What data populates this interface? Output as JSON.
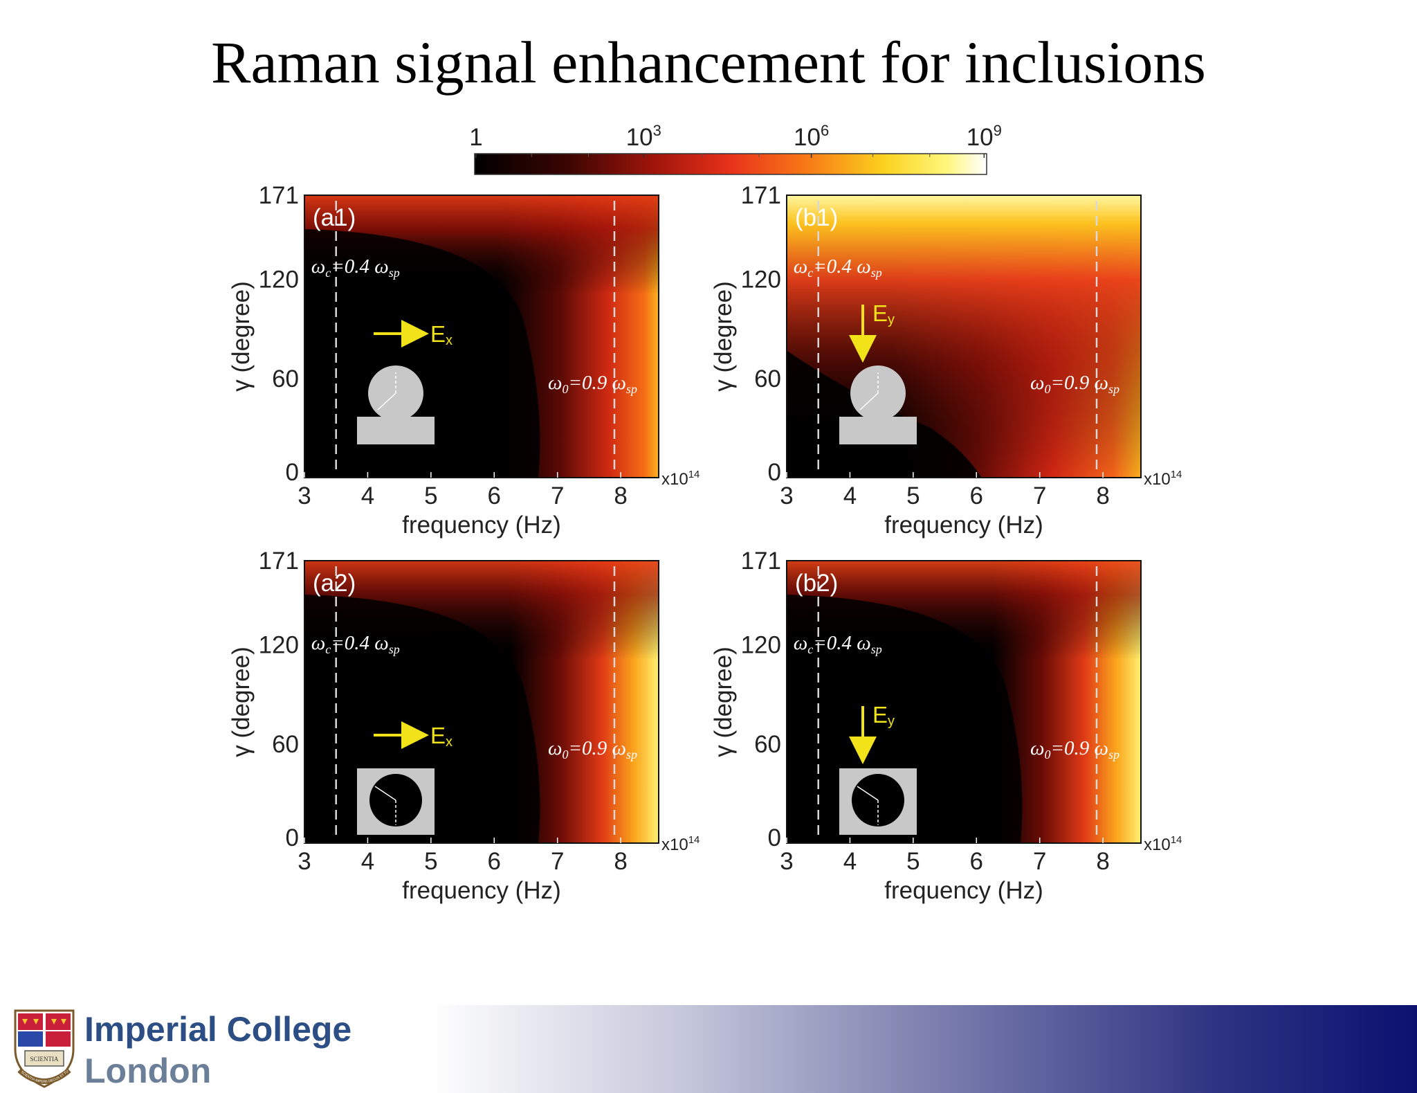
{
  "slide": {
    "title": "Raman signal enhancement for inclusions",
    "logo_line1": "Imperial College",
    "logo_line2": "London",
    "crest_motto": "SCIENTIA IMPERII DECUS ET TUTAMEN",
    "crest_book": "SCIENTIA"
  },
  "colorbar": {
    "colormap": "hot",
    "scale": "log",
    "range": [
      1,
      1000000000
    ],
    "ticks": [
      {
        "base": "1",
        "exp": ""
      },
      {
        "base": "10",
        "exp": "3"
      },
      {
        "base": "10",
        "exp": "6"
      },
      {
        "base": "10",
        "exp": "9"
      }
    ]
  },
  "chart_data": [
    {
      "type": "heatmap",
      "panel": "(a1)",
      "xlabel": "frequency (Hz)",
      "ylabel": "γ (degree)",
      "x_multiplier": "x10",
      "x_multiplier_exp": "14",
      "xlim": [
        300000000000000.0,
        860000000000000.0
      ],
      "ylim": [
        0,
        171
      ],
      "xticks": [
        "3",
        "4",
        "5",
        "6",
        "7",
        "8"
      ],
      "yticks": [
        "0",
        "60",
        "120",
        "171"
      ],
      "geometry": "particle on substrate",
      "field": "Ex",
      "field_direction": "horizontal",
      "color": "log enhancement, strong only near high frequency and high γ",
      "annotations": [
        {
          "text": "ω",
          "sub": "c",
          "rest": "=0.4 ω",
          "rest_sub": "sp",
          "x": 350000000000000.0
        },
        {
          "text": "ω",
          "sub": "0",
          "rest": "=0.9 ω",
          "rest_sub": "sp",
          "x": 790000000000000.0
        }
      ]
    },
    {
      "type": "heatmap",
      "panel": "(b1)",
      "xlabel": "frequency (Hz)",
      "ylabel": "γ (degree)",
      "x_multiplier": "x10",
      "x_multiplier_exp": "14",
      "xlim": [
        300000000000000.0,
        860000000000000.0
      ],
      "ylim": [
        0,
        171
      ],
      "xticks": [
        "3",
        "4",
        "5",
        "6",
        "7",
        "8"
      ],
      "yticks": [
        "0",
        "60",
        "120",
        "171"
      ],
      "geometry": "particle on substrate",
      "field": "Ey",
      "field_direction": "vertical",
      "color": "log enhancement, broad strong region across high γ",
      "annotations": [
        {
          "text": "ω",
          "sub": "c",
          "rest": "=0.4 ω",
          "rest_sub": "sp",
          "x": 350000000000000.0
        },
        {
          "text": "ω",
          "sub": "0",
          "rest": "=0.9 ω",
          "rest_sub": "sp",
          "x": 790000000000000.0
        }
      ]
    },
    {
      "type": "heatmap",
      "panel": "(a2)",
      "xlabel": "frequency (Hz)",
      "ylabel": "γ (degree)",
      "x_multiplier": "x10",
      "x_multiplier_exp": "14",
      "xlim": [
        300000000000000.0,
        860000000000000.0
      ],
      "ylim": [
        0,
        171
      ],
      "xticks": [
        "3",
        "4",
        "5",
        "6",
        "7",
        "8"
      ],
      "yticks": [
        "0",
        "60",
        "120",
        "171"
      ],
      "geometry": "void inclusion in slab",
      "field": "Ex",
      "field_direction": "horizontal",
      "color": "log enhancement, strong band at high frequency",
      "annotations": [
        {
          "text": "ω",
          "sub": "c",
          "rest": "=0.4 ω",
          "rest_sub": "sp",
          "x": 350000000000000.0
        },
        {
          "text": "ω",
          "sub": "0",
          "rest": "=0.9 ω",
          "rest_sub": "sp",
          "x": 790000000000000.0
        }
      ]
    },
    {
      "type": "heatmap",
      "panel": "(b2)",
      "xlabel": "frequency (Hz)",
      "ylabel": "γ (degree)",
      "x_multiplier": "x10",
      "x_multiplier_exp": "14",
      "xlim": [
        300000000000000.0,
        860000000000000.0
      ],
      "ylim": [
        0,
        171
      ],
      "xticks": [
        "3",
        "4",
        "5",
        "6",
        "7",
        "8"
      ],
      "yticks": [
        "0",
        "60",
        "120",
        "171"
      ],
      "geometry": "void inclusion in slab",
      "field": "Ey",
      "field_direction": "vertical",
      "color": "log enhancement, strong band at high frequency",
      "annotations": [
        {
          "text": "ω",
          "sub": "c",
          "rest": "=0.4 ω",
          "rest_sub": "sp",
          "x": 350000000000000.0
        },
        {
          "text": "ω",
          "sub": "0",
          "rest": "=0.9 ω",
          "rest_sub": "sp",
          "x": 790000000000000.0
        }
      ]
    }
  ]
}
